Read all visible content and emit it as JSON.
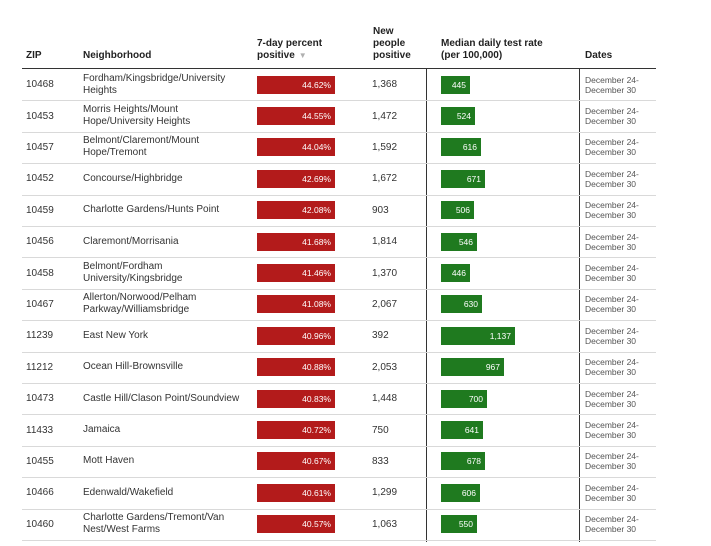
{
  "headers": {
    "zip": "ZIP",
    "neighborhood": "Neighborhood",
    "percent_line1": "7-day percent",
    "percent_line2": "positive",
    "sort_indicator": "▼",
    "new_line1": "New",
    "new_line2": "people",
    "new_line3": "positive",
    "rate_line1": "Median daily test rate",
    "rate_line2": "(per 100,000)",
    "dates": "Dates"
  },
  "colors": {
    "positive_bar": "#b31b1b",
    "rate_bar": "#1f7a1f"
  },
  "percent_scale_max": 44.62,
  "rate_scale_max": 1137,
  "rows": [
    {
      "zip": "10468",
      "hood": "Fordham/Kingsbridge/University Heights",
      "pct": 44.62,
      "pct_label": "44.62%",
      "new": "1,368",
      "rate": 445,
      "rate_label": "445",
      "dates1": "December 24-",
      "dates2": "December 30"
    },
    {
      "zip": "10453",
      "hood": "Morris Heights/Mount Hope/University Heights",
      "pct": 44.55,
      "pct_label": "44.55%",
      "new": "1,472",
      "rate": 524,
      "rate_label": "524",
      "dates1": "December 24-",
      "dates2": "December 30"
    },
    {
      "zip": "10457",
      "hood": "Belmont/Claremont/Mount Hope/Tremont",
      "pct": 44.04,
      "pct_label": "44.04%",
      "new": "1,592",
      "rate": 616,
      "rate_label": "616",
      "dates1": "December 24-",
      "dates2": "December 30"
    },
    {
      "zip": "10452",
      "hood": "Concourse/Highbridge",
      "pct": 42.69,
      "pct_label": "42.69%",
      "new": "1,672",
      "rate": 671,
      "rate_label": "671",
      "dates1": "December 24-",
      "dates2": "December 30"
    },
    {
      "zip": "10459",
      "hood": "Charlotte Gardens/Hunts Point",
      "pct": 42.08,
      "pct_label": "42.08%",
      "new": "903",
      "rate": 506,
      "rate_label": "506",
      "dates1": "December 24-",
      "dates2": "December 30"
    },
    {
      "zip": "10456",
      "hood": "Claremont/Morrisania",
      "pct": 41.68,
      "pct_label": "41.68%",
      "new": "1,814",
      "rate": 546,
      "rate_label": "546",
      "dates1": "December 24-",
      "dates2": "December 30"
    },
    {
      "zip": "10458",
      "hood": "Belmont/Fordham University/Kingsbridge",
      "pct": 41.46,
      "pct_label": "41.46%",
      "new": "1,370",
      "rate": 446,
      "rate_label": "446",
      "dates1": "December 24-",
      "dates2": "December 30"
    },
    {
      "zip": "10467",
      "hood": "Allerton/Norwood/Pelham Parkway/Williamsbridge",
      "pct": 41.08,
      "pct_label": "41.08%",
      "new": "2,067",
      "rate": 630,
      "rate_label": "630",
      "dates1": "December 24-",
      "dates2": "December 30"
    },
    {
      "zip": "11239",
      "hood": "East New York",
      "pct": 40.96,
      "pct_label": "40.96%",
      "new": "392",
      "rate": 1137,
      "rate_label": "1,137",
      "dates1": "December 24-",
      "dates2": "December 30"
    },
    {
      "zip": "11212",
      "hood": "Ocean Hill-Brownsville",
      "pct": 40.88,
      "pct_label": "40.88%",
      "new": "2,053",
      "rate": 967,
      "rate_label": "967",
      "dates1": "December 24-",
      "dates2": "December 30"
    },
    {
      "zip": "10473",
      "hood": "Castle Hill/Clason Point/Soundview",
      "pct": 40.83,
      "pct_label": "40.83%",
      "new": "1,448",
      "rate": 700,
      "rate_label": "700",
      "dates1": "December 24-",
      "dates2": "December 30"
    },
    {
      "zip": "11433",
      "hood": "Jamaica",
      "pct": 40.72,
      "pct_label": "40.72%",
      "new": "750",
      "rate": 641,
      "rate_label": "641",
      "dates1": "December 24-",
      "dates2": "December 30"
    },
    {
      "zip": "10455",
      "hood": "Mott Haven",
      "pct": 40.67,
      "pct_label": "40.67%",
      "new": "833",
      "rate": 678,
      "rate_label": "678",
      "dates1": "December 24-",
      "dates2": "December 30"
    },
    {
      "zip": "10466",
      "hood": "Edenwald/Wakefield",
      "pct": 40.61,
      "pct_label": "40.61%",
      "new": "1,299",
      "rate": 606,
      "rate_label": "606",
      "dates1": "December 24-",
      "dates2": "December 30"
    },
    {
      "zip": "10460",
      "hood": "Charlotte Gardens/Tremont/Van Nest/West Farms",
      "pct": 40.57,
      "pct_label": "40.57%",
      "new": "1,063",
      "rate": 550,
      "rate_label": "550",
      "dates1": "December 24-",
      "dates2": "December 30"
    }
  ]
}
